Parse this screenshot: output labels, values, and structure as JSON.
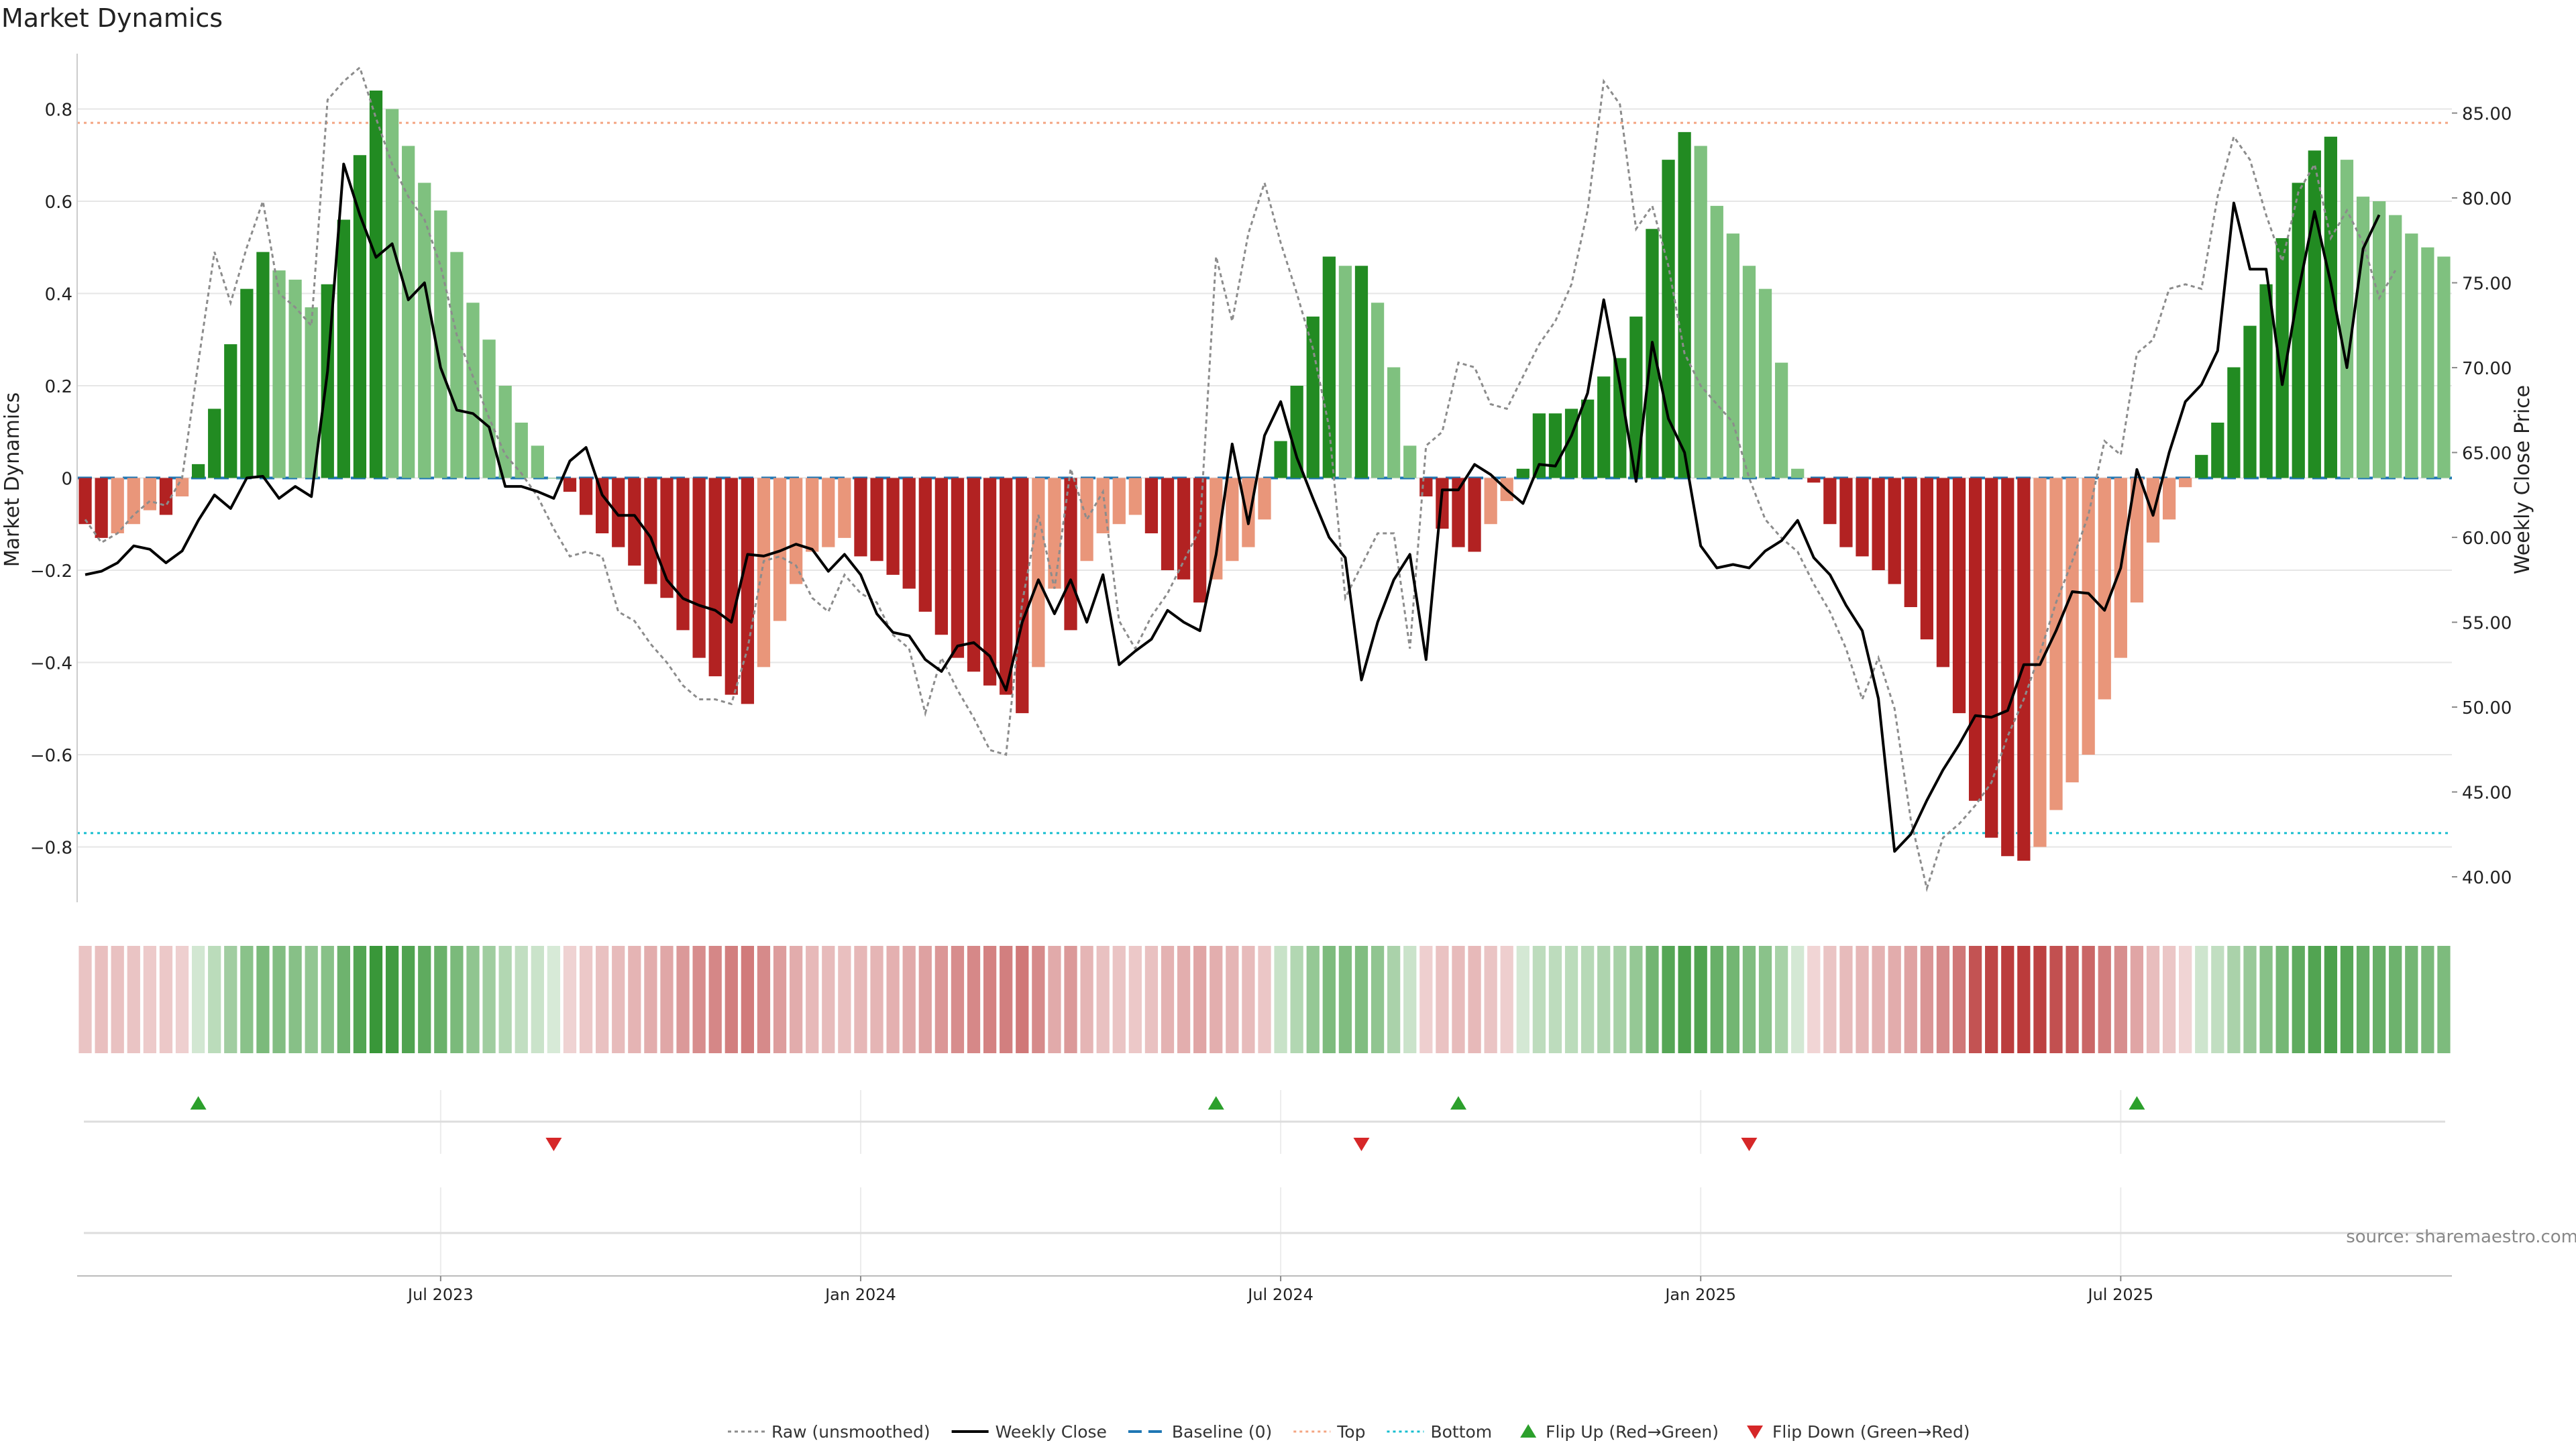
{
  "chart_data": {
    "type": "bar",
    "title": "Market Dynamics",
    "ylabel": "Market Dynamics",
    "y2label": "Weekly Close Price",
    "ylim": [
      -0.92,
      0.92
    ],
    "y2lim": [
      38.5,
      88.5
    ],
    "yticks": [
      -0.8,
      -0.6,
      -0.4,
      -0.2,
      0,
      0.2,
      0.4,
      0.6,
      0.8
    ],
    "ytick_labels": [
      "−0.8",
      "−0.6",
      "−0.4",
      "−0.2",
      "0",
      "0.2",
      "0.4",
      "0.6",
      "0.8"
    ],
    "y2ticks": [
      40,
      45,
      50,
      55,
      60,
      65,
      70,
      75,
      80,
      85
    ],
    "y2tick_labels": [
      "40.00",
      "45.00",
      "50.00",
      "55.00",
      "60.00",
      "65.00",
      "70.00",
      "75.00",
      "80.00",
      "85.00"
    ],
    "x_ticks": [
      {
        "week": 22,
        "label": "Jul 2023"
      },
      {
        "week": 48,
        "label": "Jan 2024"
      },
      {
        "week": 74,
        "label": "Jul 2024"
      },
      {
        "week": 100,
        "label": "Jan 2025"
      },
      {
        "week": 126,
        "label": "Jul 2025"
      }
    ],
    "top_level": 0.77,
    "bottom_level": -0.77,
    "baseline": 0,
    "grid": true,
    "legend_position": "bottom-center",
    "source_text": "source: sharemaestro.com",
    "legend": [
      {
        "label": "Raw (unsmoothed)",
        "style": "dotted-gray-line"
      },
      {
        "label": "Weekly Close",
        "style": "black-line"
      },
      {
        "label": "Baseline (0)",
        "style": "dashed-blue-line"
      },
      {
        "label": "Top",
        "style": "dotted-orange-line"
      },
      {
        "label": "Bottom",
        "style": "dotted-cyan-line"
      },
      {
        "label": "Flip Up (Red→Green)",
        "style": "green-triangle-up"
      },
      {
        "label": "Flip Down (Green→Red)",
        "style": "red-triangle-down"
      }
    ],
    "colors": {
      "strong_green": "#228b22",
      "light_green": "#7fc17f",
      "strong_red": "#b22222",
      "light_red": "#e9967a",
      "close_line": "#000000",
      "raw_line": "#8c8c8c",
      "baseline": "#1f77b4",
      "top": "#f4a582",
      "bottom": "#17becf",
      "flip_up": "#2ca02c",
      "flip_down": "#d62728"
    },
    "series": [
      {
        "name": "Market Dynamics",
        "values": [
          -0.1,
          -0.13,
          -0.12,
          -0.1,
          -0.07,
          -0.08,
          -0.04,
          0.03,
          0.15,
          0.29,
          0.41,
          0.49,
          0.45,
          0.43,
          0.37,
          0.42,
          0.56,
          0.7,
          0.84,
          0.8,
          0.72,
          0.64,
          0.58,
          0.49,
          0.38,
          0.3,
          0.2,
          0.12,
          0.07,
          0.0,
          -0.03,
          -0.08,
          -0.12,
          -0.15,
          -0.19,
          -0.23,
          -0.26,
          -0.33,
          -0.39,
          -0.43,
          -0.47,
          -0.49,
          -0.41,
          -0.31,
          -0.23,
          -0.16,
          -0.15,
          -0.13,
          -0.17,
          -0.18,
          -0.21,
          -0.24,
          -0.29,
          -0.34,
          -0.39,
          -0.42,
          -0.45,
          -0.47,
          -0.51,
          -0.41,
          -0.24,
          -0.33,
          -0.18,
          -0.12,
          -0.1,
          -0.08,
          -0.12,
          -0.2,
          -0.22,
          -0.27,
          -0.22,
          -0.18,
          -0.15,
          -0.09,
          0.08,
          0.2,
          0.35,
          0.48,
          0.46,
          0.46,
          0.38,
          0.24,
          0.07,
          -0.04,
          -0.11,
          -0.15,
          -0.16,
          -0.1,
          -0.05,
          0.02,
          0.14,
          0.14,
          0.15,
          0.17,
          0.22,
          0.26,
          0.35,
          0.54,
          0.69,
          0.75,
          0.72,
          0.59,
          0.53,
          0.46,
          0.41,
          0.25,
          0.02,
          -0.01,
          -0.1,
          -0.15,
          -0.17,
          -0.2,
          -0.23,
          -0.28,
          -0.35,
          -0.41,
          -0.51,
          -0.7,
          -0.78,
          -0.82,
          -0.83,
          -0.8,
          -0.72,
          -0.66,
          -0.6,
          -0.48,
          -0.39,
          -0.27,
          -0.14,
          -0.09,
          -0.02,
          0.05,
          0.12,
          0.24,
          0.33,
          0.42,
          0.52,
          0.64,
          0.71,
          0.74,
          0.69,
          0.61,
          0.6,
          0.57,
          0.53,
          0.5,
          0.48
        ]
      },
      {
        "name": "Raw (unsmoothed)",
        "values": [
          -0.09,
          -0.14,
          -0.12,
          -0.08,
          -0.05,
          -0.06,
          0.0,
          0.25,
          0.49,
          0.38,
          0.5,
          0.6,
          0.4,
          0.37,
          0.33,
          0.82,
          0.86,
          0.89,
          0.78,
          0.68,
          0.61,
          0.56,
          0.46,
          0.31,
          0.22,
          0.13,
          0.05,
          0.01,
          -0.04,
          -0.11,
          -0.17,
          -0.16,
          -0.17,
          -0.29,
          -0.31,
          -0.36,
          -0.4,
          -0.45,
          -0.48,
          -0.48,
          -0.49,
          -0.37,
          -0.18,
          -0.17,
          -0.19,
          -0.26,
          -0.29,
          -0.21,
          -0.25,
          -0.27,
          -0.34,
          -0.37,
          -0.51,
          -0.39,
          -0.46,
          -0.52,
          -0.59,
          -0.6,
          -0.27,
          -0.08,
          -0.24,
          0.02,
          -0.09,
          -0.03,
          -0.31,
          -0.37,
          -0.3,
          -0.25,
          -0.18,
          -0.11,
          0.48,
          0.34,
          0.53,
          0.64,
          0.51,
          0.4,
          0.28,
          0.11,
          -0.26,
          -0.19,
          -0.12,
          -0.12,
          -0.37,
          0.07,
          0.1,
          0.25,
          0.24,
          0.16,
          0.15,
          0.22,
          0.29,
          0.34,
          0.42,
          0.58,
          0.86,
          0.81,
          0.54,
          0.59,
          0.46,
          0.27,
          0.2,
          0.16,
          0.12,
          0.0,
          -0.09,
          -0.13,
          -0.16,
          -0.23,
          -0.29,
          -0.37,
          -0.48,
          -0.39,
          -0.5,
          -0.74,
          -0.89,
          -0.78,
          -0.75,
          -0.71,
          -0.66,
          -0.56,
          -0.48,
          -0.38,
          -0.27,
          -0.18,
          -0.08,
          0.08,
          0.05,
          0.27,
          0.3,
          0.41,
          0.42,
          0.41,
          0.61,
          0.74,
          0.69,
          0.57,
          0.47,
          0.62,
          0.68,
          0.52,
          0.58,
          0.51,
          0.39,
          0.45
        ]
      },
      {
        "name": "Weekly Close",
        "values": [
          57.8,
          58.0,
          58.5,
          59.5,
          59.3,
          58.5,
          59.2,
          61.0,
          62.5,
          61.7,
          63.5,
          63.6,
          62.3,
          63.0,
          62.4,
          69.8,
          82.0,
          79.0,
          76.5,
          77.3,
          74.0,
          75.0,
          70.0,
          67.5,
          67.3,
          66.5,
          63.0,
          63.0,
          62.7,
          62.3,
          64.5,
          65.3,
          62.5,
          61.3,
          61.3,
          60.0,
          57.5,
          56.4,
          56.0,
          55.7,
          55.0,
          59.0,
          58.9,
          59.2,
          59.6,
          59.3,
          58.0,
          59.0,
          57.8,
          55.5,
          54.4,
          54.2,
          52.8,
          52.1,
          53.6,
          53.8,
          53.0,
          51.0,
          55.0,
          57.5,
          55.5,
          57.5,
          55.0,
          57.8,
          52.5,
          53.3,
          54.0,
          55.7,
          55.0,
          54.5,
          59.0,
          65.5,
          60.8,
          66.0,
          68.0,
          64.7,
          62.3,
          60.0,
          58.8,
          51.6,
          55.0,
          57.5,
          59.0,
          52.8,
          62.8,
          62.8,
          64.3,
          63.7,
          62.8,
          62.0,
          64.3,
          64.2,
          66.0,
          68.5,
          74.0,
          69.0,
          63.3,
          71.5,
          67.0,
          65.0,
          59.5,
          58.2,
          58.4,
          58.2,
          59.2,
          59.8,
          61.0,
          58.8,
          57.8,
          56.0,
          54.5,
          50.5,
          41.5,
          42.5,
          44.5,
          46.3,
          47.8,
          49.5,
          49.4,
          49.8,
          52.5,
          52.5,
          54.5,
          56.8,
          56.7,
          55.7,
          58.2,
          64.0,
          61.3,
          65.0,
          68.0,
          69.0,
          71.0,
          79.7,
          75.8,
          75.8,
          69.0,
          74.5,
          79.2,
          75.0,
          70.0,
          77.0,
          79.0
        ]
      }
    ],
    "flip_up_weeks": [
      7,
      70,
      85,
      127
    ],
    "flip_down_weeks": [
      29,
      79,
      103
    ]
  }
}
